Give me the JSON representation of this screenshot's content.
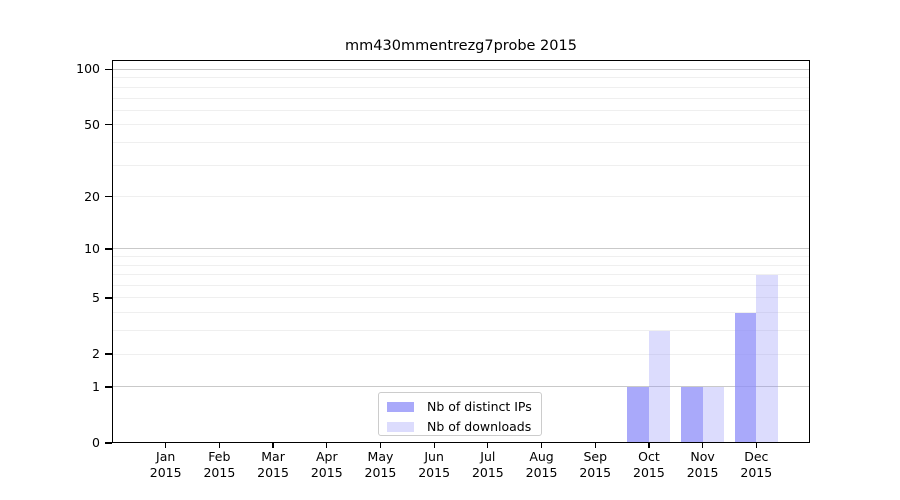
{
  "chart_data": {
    "type": "bar",
    "title": "mm430mmentrezg7probe 2015",
    "x_tick_labels": [
      {
        "month": "Jan",
        "year": "2015"
      },
      {
        "month": "Feb",
        "year": "2015"
      },
      {
        "month": "Mar",
        "year": "2015"
      },
      {
        "month": "Apr",
        "year": "2015"
      },
      {
        "month": "May",
        "year": "2015"
      },
      {
        "month": "Jun",
        "year": "2015"
      },
      {
        "month": "Jul",
        "year": "2015"
      },
      {
        "month": "Aug",
        "year": "2015"
      },
      {
        "month": "Sep",
        "year": "2015"
      },
      {
        "month": "Oct",
        "year": "2015"
      },
      {
        "month": "Nov",
        "year": "2015"
      },
      {
        "month": "Dec",
        "year": "2015"
      }
    ],
    "series": [
      {
        "name": "Nb of distinct IPs",
        "key": "distinct-ips",
        "color": "rgba(140,140,248,0.75)",
        "values": [
          0,
          0,
          0,
          0,
          0,
          0,
          0,
          0,
          0,
          1,
          1,
          4
        ]
      },
      {
        "name": "Nb of downloads",
        "key": "downloads",
        "color": "rgba(140,140,248,0.30)",
        "values": [
          0,
          0,
          0,
          0,
          0,
          0,
          0,
          0,
          0,
          3,
          1,
          7
        ]
      }
    ],
    "y_axis": {
      "scale": "log1p",
      "tick_values": [
        100,
        50,
        20,
        10,
        5,
        2,
        1,
        0
      ],
      "minor_gridlines": [
        2,
        3,
        4,
        5,
        6,
        7,
        8,
        9,
        20,
        30,
        40,
        50,
        60,
        70,
        80,
        90
      ],
      "major_gridlines": [
        1,
        10,
        100
      ],
      "ylim": [
        0,
        113
      ]
    },
    "legend": {
      "position": "lower center",
      "labels": [
        "Nb of distinct IPs",
        "Nb of downloads"
      ]
    },
    "grid": "horizontal-only",
    "colors": {
      "minor_grid": "#efefef",
      "major_grid": "#c9c9c9",
      "spine": "#000000",
      "text": "#000000",
      "background": "#ffffff"
    }
  }
}
